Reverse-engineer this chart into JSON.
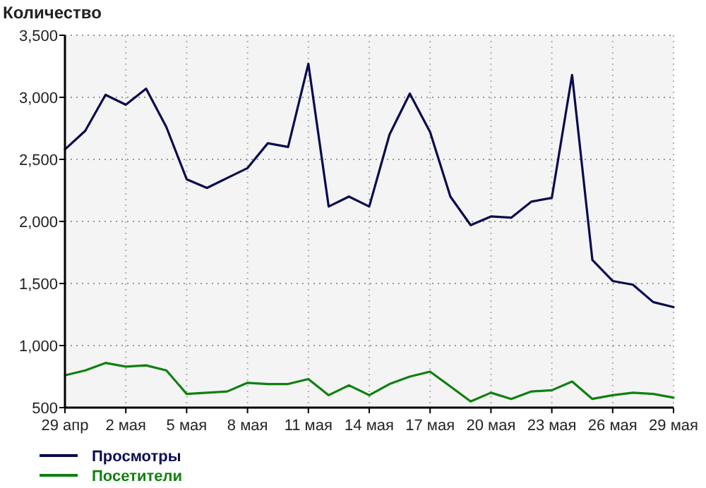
{
  "chart_data": {
    "type": "line",
    "ylabel": "Количество",
    "x": [
      "--04-29",
      "--04-30",
      "--05-01",
      "--05-02",
      "--05-03",
      "--05-04",
      "--05-05",
      "--05-06",
      "--05-07",
      "--05-08",
      "--05-09",
      "--05-10",
      "--05-11",
      "--05-12",
      "--05-13",
      "--05-14",
      "--05-15",
      "--05-16",
      "--05-17",
      "--05-18",
      "--05-19",
      "--05-20",
      "--05-21",
      "--05-22",
      "--05-23",
      "--05-24",
      "--05-25",
      "--05-26",
      "--05-27",
      "--05-28",
      "--05-29"
    ],
    "series": [
      {
        "name": "Просмотры",
        "color": "#0a0a50",
        "values": [
          2580,
          2730,
          3020,
          2940,
          3070,
          2760,
          2340,
          2270,
          2350,
          2430,
          2630,
          2600,
          3270,
          2120,
          2200,
          2120,
          2700,
          3030,
          2720,
          2200,
          1970,
          2040,
          2030,
          2160,
          2190,
          3180,
          1690,
          1520,
          1490,
          1350,
          1310
        ]
      },
      {
        "name": "Посетители",
        "color": "#108010",
        "values": [
          760,
          800,
          860,
          830,
          840,
          800,
          610,
          620,
          630,
          700,
          690,
          690,
          730,
          600,
          680,
          600,
          690,
          750,
          790,
          670,
          550,
          620,
          570,
          630,
          640,
          710,
          570,
          600,
          620,
          610,
          580
        ]
      }
    ],
    "xlim": [
      "--04-29",
      "--05-29"
    ],
    "xticks": [
      {
        "value": "--04-29",
        "label": "29 апр"
      },
      {
        "value": "--05-02",
        "label": "2 мая"
      },
      {
        "value": "--05-05",
        "label": "5 мая"
      },
      {
        "value": "--05-08",
        "label": "8 мая"
      },
      {
        "value": "--05-11",
        "label": "11 мая"
      },
      {
        "value": "--05-14",
        "label": "14 мая"
      },
      {
        "value": "--05-17",
        "label": "17 мая"
      },
      {
        "value": "--05-20",
        "label": "20 мая"
      },
      {
        "value": "--05-23",
        "label": "23 мая"
      },
      {
        "value": "--05-26",
        "label": "26 мая"
      },
      {
        "value": "--05-29",
        "label": "29 мая"
      }
    ],
    "ylim": [
      500,
      3500
    ],
    "yticks": [
      {
        "value": 500,
        "label": "500"
      },
      {
        "value": 1000,
        "label": "1,000"
      },
      {
        "value": 1500,
        "label": "1,500"
      },
      {
        "value": 2000,
        "label": "2,000"
      },
      {
        "value": 2500,
        "label": "2,500"
      },
      {
        "value": 3000,
        "label": "3,000"
      },
      {
        "value": 3500,
        "label": "3,500"
      }
    ],
    "grid": true,
    "legend": "bottom left",
    "marker": "none",
    "line_style": "solid"
  }
}
